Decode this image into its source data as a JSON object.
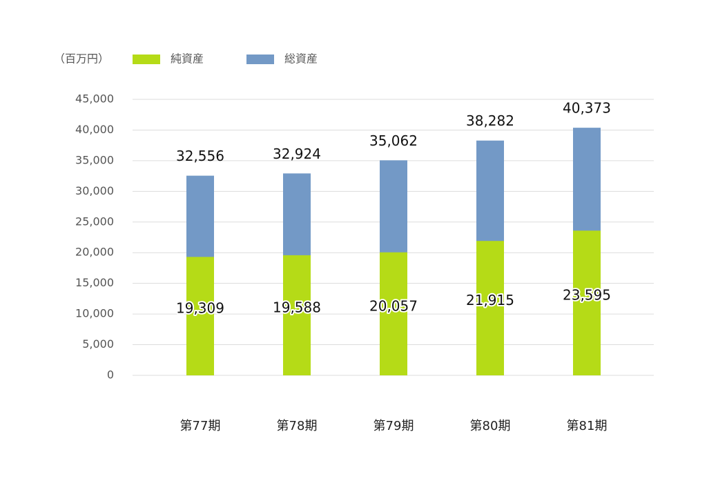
{
  "chart_data": {
    "type": "bar",
    "unit_label": "（百万円）",
    "categories": [
      "第77期",
      "第78期",
      "第79期",
      "第80期",
      "第81期"
    ],
    "series": [
      {
        "name": "総資産",
        "color": "#7399c6",
        "values": [
          32556,
          32924,
          35062,
          38282,
          40373
        ],
        "value_labels": [
          "32,556",
          "32,924",
          "35,062",
          "38,282",
          "40,373"
        ]
      },
      {
        "name": "純資産",
        "color": "#b5db17",
        "values": [
          19309,
          19588,
          20057,
          21915,
          23595
        ],
        "value_labels": [
          "19,309",
          "19,588",
          "20,057",
          "21,915",
          "23,595"
        ]
      }
    ],
    "ylim": [
      0,
      45000
    ],
    "yticks": [
      0,
      {
        "value": 5000,
        "label": "5,000"
      },
      {
        "value": 10000,
        "label": "10,000"
      },
      {
        "value": 15000,
        "label": "15,000"
      },
      {
        "value": 20000,
        "label": "20,000"
      },
      {
        "value": 25000,
        "label": "25,000"
      },
      {
        "value": 30000,
        "label": "30,000"
      },
      {
        "value": 35000,
        "label": "35,000"
      },
      {
        "value": 40000,
        "label": "40,000"
      },
      {
        "value": 45000,
        "label": "45,000"
      }
    ],
    "grid": true
  }
}
